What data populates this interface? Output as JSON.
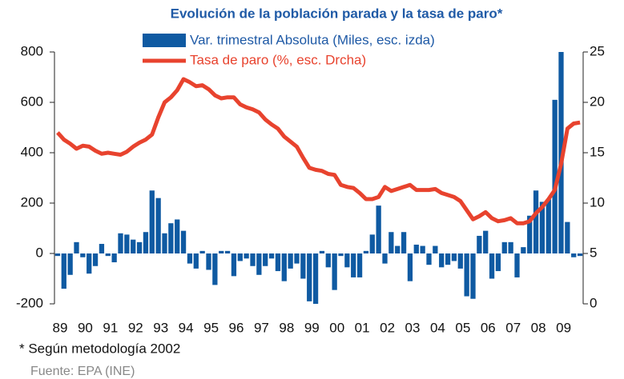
{
  "chart_data": {
    "type": "bar_line",
    "title": "Evolución de la población parada y la tasa de paro*",
    "note": "* Según metodología 2002",
    "source": "Fuente: EPA (INE)",
    "categories": [
      "89",
      null,
      null,
      null,
      "90",
      null,
      null,
      null,
      "91",
      null,
      null,
      null,
      "92",
      null,
      null,
      null,
      "93",
      null,
      null,
      null,
      "94",
      null,
      null,
      null,
      "95",
      null,
      null,
      null,
      "96",
      null,
      null,
      null,
      "97",
      null,
      null,
      null,
      "98",
      null,
      null,
      null,
      "99",
      null,
      null,
      null,
      "00",
      null,
      null,
      null,
      "01",
      null,
      null,
      null,
      "02",
      null,
      null,
      null,
      "03",
      null,
      null,
      null,
      "04",
      null,
      null,
      null,
      "05",
      null,
      null,
      null,
      "06",
      null,
      null,
      null,
      "07",
      null,
      null,
      null,
      "08",
      null,
      null,
      null,
      "09",
      null,
      null,
      null
    ],
    "series": [
      {
        "name": "Var. trimestral Absoluta (Miles, esc. izda)",
        "type": "bar",
        "color": "#0f5aa2",
        "values": [
          -10,
          -140,
          -85,
          45,
          -15,
          -80,
          -50,
          38,
          -10,
          -35,
          80,
          75,
          55,
          45,
          85,
          250,
          220,
          80,
          120,
          135,
          90,
          -40,
          -60,
          10,
          -65,
          -125,
          10,
          10,
          -90,
          -30,
          -20,
          -50,
          -85,
          -50,
          -20,
          -70,
          -110,
          -60,
          -40,
          -100,
          -190,
          -200,
          10,
          -55,
          -145,
          -10,
          -55,
          -95,
          -95,
          10,
          75,
          190,
          -40,
          85,
          30,
          85,
          -110,
          35,
          30,
          -45,
          30,
          -55,
          -45,
          -30,
          -60,
          -170,
          -180,
          70,
          90,
          -100,
          -70,
          45,
          45,
          -95,
          25,
          150,
          250,
          205,
          215,
          610,
          800,
          125,
          -15,
          -10
        ]
      },
      {
        "name": "Tasa de paro (%, esc. Drcha)",
        "type": "line",
        "axis": "y2",
        "color": "#e8432e",
        "values": [
          17.0,
          16.3,
          15.9,
          15.4,
          15.7,
          15.6,
          15.2,
          14.9,
          15.0,
          14.9,
          14.8,
          15.1,
          15.6,
          16.0,
          16.3,
          16.8,
          18.5,
          20.0,
          20.5,
          21.2,
          22.3,
          22.0,
          21.6,
          21.7,
          21.3,
          20.7,
          20.4,
          20.5,
          20.5,
          19.8,
          19.5,
          19.3,
          19.0,
          18.3,
          17.8,
          17.4,
          16.6,
          16.1,
          15.6,
          14.5,
          13.5,
          13.3,
          13.2,
          12.9,
          12.8,
          11.8,
          11.6,
          11.5,
          11.0,
          10.4,
          10.4,
          10.6,
          11.6,
          11.2,
          11.4,
          11.6,
          11.8,
          11.3,
          11.3,
          11.3,
          11.4,
          11.0,
          10.8,
          10.6,
          10.2,
          9.3,
          8.4,
          8.7,
          9.1,
          8.5,
          8.2,
          8.3,
          8.5,
          8.0,
          8.0,
          8.2,
          9.0,
          9.6,
          10.4,
          11.3,
          13.9,
          17.4,
          17.9,
          18.0
        ]
      }
    ],
    "ylim": [
      -200,
      800
    ],
    "yticks": [
      -200,
      0,
      200,
      400,
      600,
      800
    ],
    "y2lim": [
      0,
      25
    ],
    "y2ticks": [
      0,
      5,
      10,
      15,
      20,
      25
    ],
    "grid": false
  }
}
